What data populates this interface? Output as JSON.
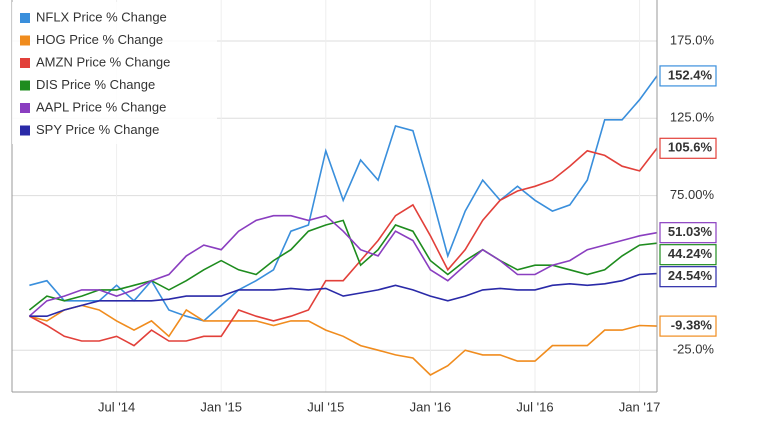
{
  "chart_data": {
    "type": "line",
    "x": [
      "2014-02",
      "2014-03",
      "2014-04",
      "2014-05",
      "2014-06",
      "2014-07",
      "2014-08",
      "2014-09",
      "2014-10",
      "2014-11",
      "2014-12",
      "2015-01",
      "2015-02",
      "2015-03",
      "2015-04",
      "2015-05",
      "2015-06",
      "2015-07",
      "2015-08",
      "2015-09",
      "2015-10",
      "2015-11",
      "2015-12",
      "2016-01",
      "2016-02",
      "2016-03",
      "2016-04",
      "2016-05",
      "2016-06",
      "2016-07",
      "2016-08",
      "2016-09",
      "2016-10",
      "2016-11",
      "2016-12",
      "2017-01",
      "2017-02"
    ],
    "xlim": [
      "2014-01",
      "2017-02"
    ],
    "xticks": [
      {
        "value": "2014-07",
        "label": "Jul '14"
      },
      {
        "value": "2015-01",
        "label": "Jan '15"
      },
      {
        "value": "2015-07",
        "label": "Jul '15"
      },
      {
        "value": "2016-01",
        "label": "Jan '16"
      },
      {
        "value": "2016-07",
        "label": "Jul '16"
      },
      {
        "value": "2017-01",
        "label": "Jan '17"
      }
    ],
    "ylim": [
      -52,
      201.5
    ],
    "yticks": [
      {
        "value": -25,
        "label": "-25.0%"
      },
      {
        "value": 75,
        "label": "75.00%"
      },
      {
        "value": 125,
        "label": "125.0%"
      },
      {
        "value": 175,
        "label": "175.0%"
      }
    ],
    "grid": true,
    "legend": "top-left",
    "series": [
      {
        "name": "NFLX Price % Change",
        "color": "#3a8fdc",
        "values": [
          17,
          20,
          7,
          7,
          7,
          17,
          7,
          20,
          1,
          -3,
          -6,
          4,
          14,
          20,
          27,
          52,
          56,
          104,
          72,
          98,
          85,
          120,
          117,
          78,
          36,
          65,
          85,
          72,
          81,
          72,
          65,
          69,
          85,
          124,
          124,
          137,
          152.4
        ],
        "value_labels": [
          null,
          null,
          null,
          null,
          null,
          null,
          null,
          null,
          null,
          null,
          null,
          null,
          null,
          null,
          null,
          null,
          null,
          null,
          null,
          null,
          null,
          null,
          null,
          null,
          null,
          null,
          null,
          null,
          null,
          null,
          null,
          null,
          null,
          null,
          null,
          null,
          "152.4%"
        ]
      },
      {
        "name": "HOG Price % Change",
        "color": "#f08c1e",
        "values": [
          -3,
          -6,
          1,
          4,
          1,
          -6,
          -12,
          -6,
          -16,
          1,
          -6,
          -6,
          -6,
          -6,
          -9,
          -6,
          -6,
          -12,
          -16,
          -22,
          -25,
          -28,
          -30,
          -41,
          -35,
          -25,
          -28,
          -28,
          -32,
          -32,
          -22,
          -22,
          -22,
          -12,
          -12,
          -9,
          -9.38
        ],
        "value_labels": [
          null,
          null,
          null,
          null,
          null,
          null,
          null,
          null,
          null,
          null,
          null,
          null,
          null,
          null,
          null,
          null,
          null,
          null,
          null,
          null,
          null,
          null,
          null,
          null,
          null,
          null,
          null,
          null,
          null,
          null,
          null,
          null,
          null,
          null,
          null,
          null,
          "-9.38%"
        ]
      },
      {
        "name": "AMZN Price % Change",
        "color": "#e2403a",
        "values": [
          -3,
          -9,
          -16,
          -19,
          -19,
          -16,
          -22,
          -12,
          -19,
          -19,
          -16,
          -16,
          1,
          -3,
          -6,
          -3,
          1,
          20,
          20,
          33,
          46,
          62,
          69,
          49,
          27,
          40,
          59,
          72,
          78,
          81,
          85,
          94,
          104,
          101,
          94,
          91,
          105.6
        ],
        "value_labels": [
          null,
          null,
          null,
          null,
          null,
          null,
          null,
          null,
          null,
          null,
          null,
          null,
          null,
          null,
          null,
          null,
          null,
          null,
          null,
          null,
          null,
          null,
          null,
          null,
          null,
          null,
          null,
          null,
          null,
          null,
          null,
          null,
          null,
          null,
          null,
          null,
          "105.6%"
        ]
      },
      {
        "name": "DIS Price % Change",
        "color": "#1e8c1e",
        "values": [
          1,
          10,
          7,
          10,
          14,
          14,
          17,
          20,
          14,
          20,
          27,
          33,
          27,
          24,
          33,
          40,
          52,
          56,
          59,
          30,
          40,
          56,
          52,
          33,
          24,
          33,
          40,
          33,
          27,
          30,
          30,
          27,
          24,
          27,
          36,
          43,
          44.24
        ],
        "value_labels": [
          null,
          null,
          null,
          null,
          null,
          null,
          null,
          null,
          null,
          null,
          null,
          null,
          null,
          null,
          null,
          null,
          null,
          null,
          null,
          null,
          null,
          null,
          null,
          null,
          null,
          null,
          null,
          null,
          null,
          null,
          null,
          null,
          null,
          null,
          null,
          null,
          "44.24%"
        ]
      },
      {
        "name": "AAPL Price % Change",
        "color": "#8a3ec0",
        "values": [
          -3,
          7,
          10,
          14,
          14,
          10,
          14,
          20,
          24,
          36,
          43,
          40,
          52,
          59,
          62,
          62,
          59,
          62,
          52,
          40,
          36,
          52,
          46,
          27,
          20,
          30,
          40,
          33,
          24,
          24,
          30,
          33,
          40,
          43,
          46,
          49,
          51.03
        ],
        "value_labels": [
          null,
          null,
          null,
          null,
          null,
          null,
          null,
          null,
          null,
          null,
          null,
          null,
          null,
          null,
          null,
          null,
          null,
          null,
          null,
          null,
          null,
          null,
          null,
          null,
          null,
          null,
          null,
          null,
          null,
          null,
          null,
          null,
          null,
          null,
          null,
          null,
          "51.03%"
        ]
      },
      {
        "name": "SPY Price % Change",
        "color": "#2a2aa8",
        "values": [
          -3,
          -3,
          1,
          4,
          7,
          7,
          7,
          7,
          8,
          10,
          10,
          10,
          14,
          14,
          14,
          15,
          14,
          15,
          10,
          12,
          14,
          17,
          14,
          10,
          7,
          10,
          14,
          15,
          14,
          14,
          17,
          18,
          17,
          18,
          20,
          24,
          24.54
        ],
        "value_labels": [
          null,
          null,
          null,
          null,
          null,
          null,
          null,
          null,
          null,
          null,
          null,
          null,
          null,
          null,
          null,
          null,
          null,
          null,
          null,
          null,
          null,
          null,
          null,
          null,
          null,
          null,
          null,
          null,
          null,
          null,
          null,
          null,
          null,
          null,
          null,
          null,
          "24.54%"
        ]
      }
    ]
  }
}
